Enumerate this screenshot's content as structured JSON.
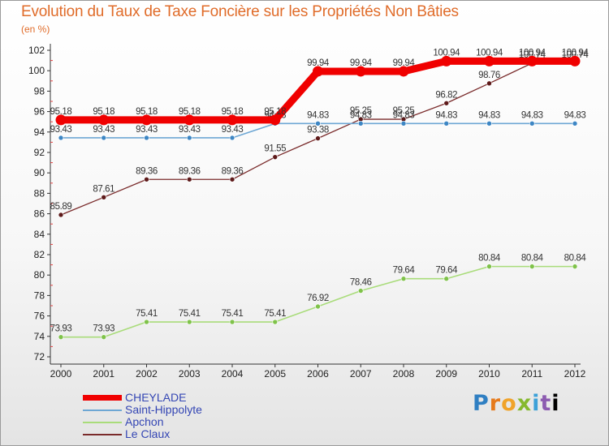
{
  "title": "Evolution du Taux de Taxe Foncière sur les Propriétés Non Bâties",
  "unit_label": "(en %)",
  "logo": {
    "letters": [
      "P",
      "r",
      "o",
      "x",
      "i",
      "t",
      "i"
    ]
  },
  "chart_data": {
    "type": "line",
    "title": "Evolution du Taux de Taxe Foncière sur les Propriétés Non Bâties",
    "xlabel": "",
    "ylabel": "(en %)",
    "ylim": [
      72,
      102
    ],
    "yticks": [
      72,
      74,
      76,
      78,
      80,
      82,
      84,
      86,
      88,
      90,
      92,
      94,
      96,
      98,
      100,
      102
    ],
    "grid": false,
    "legend_position": "bottom-left",
    "x": [
      "2000",
      "2001",
      "2002",
      "2003",
      "2004",
      "2005",
      "2006",
      "2007",
      "2008",
      "2009",
      "2010",
      "2011",
      "2012"
    ],
    "series": [
      {
        "name": "Le Claux",
        "color": "#7a2b2b",
        "marker_color": "#5e1a1a",
        "values": [
          85.89,
          87.61,
          89.36,
          89.36,
          89.36,
          91.55,
          93.38,
          95.25,
          95.25,
          96.82,
          98.76,
          100.74,
          100.74
        ],
        "labels": [
          "85.89",
          "87.61",
          "89.36",
          "89.36",
          "89.36",
          "91.55",
          "93.38",
          "95.25",
          "95.25",
          "96.82",
          "98.76",
          "100.74",
          "100.74"
        ]
      },
      {
        "name": "Apchon",
        "color": "#a9dc7a",
        "marker_color": "#7fc24a",
        "values": [
          73.93,
          73.93,
          75.41,
          75.41,
          75.41,
          75.41,
          76.92,
          78.46,
          79.64,
          79.64,
          80.84,
          80.84,
          80.84
        ],
        "labels": [
          "73.93",
          "73.93",
          "75.41",
          "75.41",
          "75.41",
          "75.41",
          "76.92",
          "78.46",
          "79.64",
          "79.64",
          "80.84",
          "80.84",
          "80.84"
        ]
      },
      {
        "name": "Saint-Hippolyte",
        "color": "#6ea7d4",
        "marker_color": "#3d86c4",
        "values": [
          93.43,
          93.43,
          93.43,
          93.43,
          93.43,
          94.83,
          94.83,
          94.83,
          94.83,
          94.83,
          94.83,
          94.83,
          94.83
        ],
        "labels": [
          "93.43",
          "93.43",
          "93.43",
          "93.43",
          "93.43",
          "94.83",
          "94.83",
          "94.83",
          "94.83",
          "94.83",
          "94.83",
          "94.83",
          "94.83"
        ]
      },
      {
        "name": "CHEYLADE",
        "color": "#f00000",
        "marker_color": "#f00000",
        "values": [
          95.18,
          95.18,
          95.18,
          95.18,
          95.18,
          95.18,
          99.94,
          99.94,
          99.94,
          100.94,
          100.94,
          100.94,
          100.94
        ],
        "labels": [
          "95.18",
          "95.18",
          "95.18",
          "95.18",
          "95.18",
          "95.18",
          "99.94",
          "99.94",
          "99.94",
          "100.94",
          "100.94",
          "100.94",
          "100.94"
        ]
      }
    ]
  },
  "legend": [
    {
      "label": "CHEYLADE",
      "color": "#f00000"
    },
    {
      "label": "Saint-Hippolyte",
      "color": "#6ea7d4"
    },
    {
      "label": "Apchon",
      "color": "#a9dc7a"
    },
    {
      "label": "Le Claux",
      "color": "#7a2b2b"
    }
  ]
}
